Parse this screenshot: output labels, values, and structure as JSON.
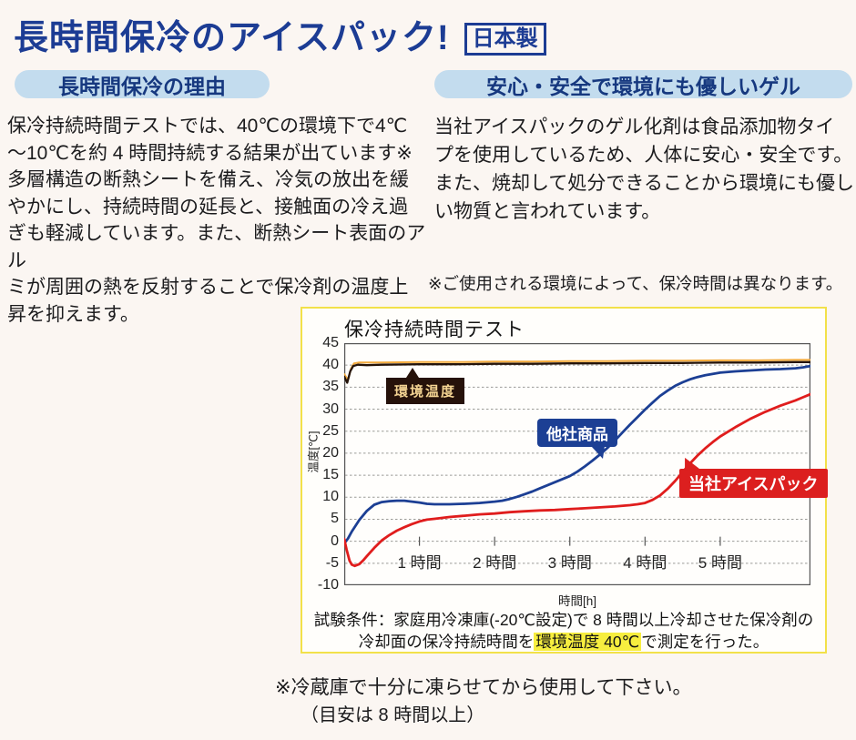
{
  "header": {
    "title": "長時間保冷のアイスパック!",
    "badge": "日本製"
  },
  "left_column": {
    "heading": "長時間保冷の理由",
    "body": "保冷持続時間テストでは、40℃の環境下で4℃\n～10℃を約 4 時間持続する結果が出ています※\n多層構造の断熱シートを備え、冷気の放出を緩\nやかにし、持続時間の延長と、接触面の冷え過\nぎも軽減しています。また、断熱シート表面のアル\nミが周囲の熱を反射することで保冷剤の温度上\n昇を抑えます。"
  },
  "right_column": {
    "heading": "安心・安全で環境にも優しいゲル",
    "body": "当社アイスパックのゲル化剤は食品添加物タイ\nプを使用しているため、人体に安心・安全です。\nまた、焼却して処分できることから環境にも優し\nい物質と言われています。",
    "usage_note": "※ご使用される環境によって、保冷時間は異なります。"
  },
  "chart": {
    "conditions_line1": "試験条件：家庭用冷凍庫(-20℃設定)で 8 時間以上冷却させた保冷剤の",
    "conditions_line2_prefix": "冷却面の保冷持続時間を",
    "conditions_highlight": "環境温度 40℃",
    "conditions_line2_suffix": "で測定を行った。",
    "colors": {
      "box_border": "#f2e14a",
      "accent_blue": "#1c3c94",
      "accent_red": "#dc1f1f",
      "pill_bg": "#c3dcee",
      "highlight_yellow": "#f7ee3f"
    }
  },
  "chart_data": {
    "type": "line",
    "title": "保冷持続時間テスト",
    "xlabel": "時間[h]",
    "ylabel": "温度[℃]",
    "xlim": [
      0,
      6.2
    ],
    "ylim": [
      -10,
      45
    ],
    "grid": "horizontal dotted lines every 5°C, legend as on-chart callout labels",
    "y_ticks": [
      45,
      40,
      35,
      30,
      25,
      20,
      15,
      10,
      5,
      0,
      -5,
      -10
    ],
    "x_ticks": [
      {
        "value": 1,
        "label": "1 時間"
      },
      {
        "value": 2,
        "label": "2 時間"
      },
      {
        "value": 3,
        "label": "3 時間"
      },
      {
        "value": 4,
        "label": "4 時間"
      },
      {
        "value": 5,
        "label": "5 時間"
      }
    ],
    "annotations": [
      {
        "text": "環境温度",
        "bg": "#26120a",
        "fg": "#f4d493"
      },
      {
        "text": "他社商品",
        "bg": "#1c3f94",
        "fg": "#ffffff"
      },
      {
        "text": "当社アイスパック",
        "bg": "#dc1f1f",
        "fg": "#ffffff"
      }
    ],
    "series": [
      {
        "name": "環境温度(重ね線・オレンジ)",
        "color": "#f2a93b",
        "width": 2.0,
        "points": [
          [
            0,
            38
          ],
          [
            0.05,
            36.6
          ],
          [
            0.09,
            39.2
          ],
          [
            0.13,
            40.4
          ],
          [
            0.2,
            40.6
          ],
          [
            0.5,
            40.6
          ],
          [
            1,
            40.7
          ],
          [
            1.5,
            40.7
          ],
          [
            2,
            40.8
          ],
          [
            2.5,
            40.8
          ],
          [
            3,
            40.9
          ],
          [
            3.5,
            40.9
          ],
          [
            4,
            41
          ],
          [
            4.5,
            41
          ],
          [
            5,
            41.1
          ],
          [
            5.5,
            41.1
          ],
          [
            6,
            41.2
          ],
          [
            6.2,
            41.2
          ]
        ]
      },
      {
        "name": "環境温度",
        "color": "#241309",
        "width": 2.3,
        "points": [
          [
            0,
            37.4
          ],
          [
            0.04,
            36
          ],
          [
            0.08,
            38.6
          ],
          [
            0.12,
            39.8
          ],
          [
            0.18,
            40.1
          ],
          [
            0.3,
            40
          ],
          [
            0.5,
            40.1
          ],
          [
            1,
            40.2
          ],
          [
            1.5,
            40.2
          ],
          [
            2,
            40.3
          ],
          [
            2.5,
            40.3
          ],
          [
            3,
            40.4
          ],
          [
            3.5,
            40.4
          ],
          [
            4,
            40.5
          ],
          [
            4.5,
            40.5
          ],
          [
            5,
            40.6
          ],
          [
            5.5,
            40.6
          ],
          [
            6,
            40.7
          ],
          [
            6.2,
            40.7
          ]
        ]
      },
      {
        "name": "他社商品",
        "color": "#1c3f94",
        "width": 2.8,
        "points": [
          [
            0,
            -0.5
          ],
          [
            0.05,
            0.6
          ],
          [
            0.1,
            2.2
          ],
          [
            0.2,
            4.8
          ],
          [
            0.3,
            6.9
          ],
          [
            0.4,
            8.3
          ],
          [
            0.5,
            8.9
          ],
          [
            0.6,
            9.1
          ],
          [
            0.7,
            9.2
          ],
          [
            0.8,
            9.2
          ],
          [
            0.9,
            9.0
          ],
          [
            1.0,
            8.8
          ],
          [
            1.1,
            8.5
          ],
          [
            1.2,
            8.4
          ],
          [
            1.4,
            8.4
          ],
          [
            1.6,
            8.5
          ],
          [
            1.8,
            8.7
          ],
          [
            2.0,
            9.0
          ],
          [
            2.1,
            9.2
          ],
          [
            2.2,
            9.6
          ],
          [
            2.3,
            10.1
          ],
          [
            2.4,
            10.7
          ],
          [
            2.5,
            11.3
          ],
          [
            2.6,
            12.0
          ],
          [
            2.7,
            12.7
          ],
          [
            2.8,
            13.4
          ],
          [
            2.9,
            14.1
          ],
          [
            3.0,
            14.8
          ],
          [
            3.1,
            15.8
          ],
          [
            3.2,
            17.0
          ],
          [
            3.3,
            18.3
          ],
          [
            3.4,
            19.7
          ],
          [
            3.5,
            21.2
          ],
          [
            3.6,
            22.9
          ],
          [
            3.7,
            24.7
          ],
          [
            3.8,
            26.5
          ],
          [
            3.9,
            28.2
          ],
          [
            4.0,
            29.9
          ],
          [
            4.1,
            31.5
          ],
          [
            4.2,
            33.0
          ],
          [
            4.3,
            34.2
          ],
          [
            4.4,
            35.3
          ],
          [
            4.5,
            36.1
          ],
          [
            4.6,
            36.8
          ],
          [
            4.7,
            37.3
          ],
          [
            4.8,
            37.7
          ],
          [
            5.0,
            38.3
          ],
          [
            5.2,
            38.6
          ],
          [
            5.4,
            38.8
          ],
          [
            5.6,
            39.0
          ],
          [
            5.8,
            39.1
          ],
          [
            6.0,
            39.3
          ],
          [
            6.1,
            39.5
          ],
          [
            6.2,
            39.8
          ]
        ]
      },
      {
        "name": "当社アイスパック",
        "color": "#e01d1d",
        "width": 2.8,
        "points": [
          [
            0,
            0.5
          ],
          [
            0.03,
            -1.8
          ],
          [
            0.07,
            -4.4
          ],
          [
            0.1,
            -5.3
          ],
          [
            0.14,
            -5.6
          ],
          [
            0.2,
            -5.2
          ],
          [
            0.25,
            -4.4
          ],
          [
            0.3,
            -3.4
          ],
          [
            0.4,
            -1.5
          ],
          [
            0.5,
            0.2
          ],
          [
            0.6,
            1.4
          ],
          [
            0.7,
            2.4
          ],
          [
            0.8,
            3.2
          ],
          [
            0.9,
            3.9
          ],
          [
            1.0,
            4.5
          ],
          [
            1.1,
            4.9
          ],
          [
            1.2,
            5.1
          ],
          [
            1.4,
            5.5
          ],
          [
            1.6,
            5.8
          ],
          [
            1.8,
            6.1
          ],
          [
            2.0,
            6.3
          ],
          [
            2.2,
            6.6
          ],
          [
            2.4,
            6.8
          ],
          [
            2.6,
            7.0
          ],
          [
            2.8,
            7.1
          ],
          [
            3.0,
            7.3
          ],
          [
            3.2,
            7.5
          ],
          [
            3.4,
            7.7
          ],
          [
            3.6,
            7.9
          ],
          [
            3.8,
            8.2
          ],
          [
            3.9,
            8.4
          ],
          [
            4.0,
            8.7
          ],
          [
            4.1,
            9.4
          ],
          [
            4.2,
            10.4
          ],
          [
            4.3,
            11.9
          ],
          [
            4.4,
            13.7
          ],
          [
            4.5,
            15.7
          ],
          [
            4.6,
            17.7
          ],
          [
            4.7,
            19.5
          ],
          [
            4.8,
            21.1
          ],
          [
            4.9,
            22.5
          ],
          [
            5.0,
            23.8
          ],
          [
            5.2,
            25.9
          ],
          [
            5.4,
            27.8
          ],
          [
            5.6,
            29.4
          ],
          [
            5.8,
            30.8
          ],
          [
            6.0,
            32.0
          ],
          [
            6.1,
            32.7
          ],
          [
            6.2,
            33.4
          ]
        ]
      }
    ]
  },
  "footer": {
    "note_line1": "※冷蔵庫で十分に凍らせてから使用して下さい。",
    "note_line2": "（目安は 8 時間以上）"
  }
}
